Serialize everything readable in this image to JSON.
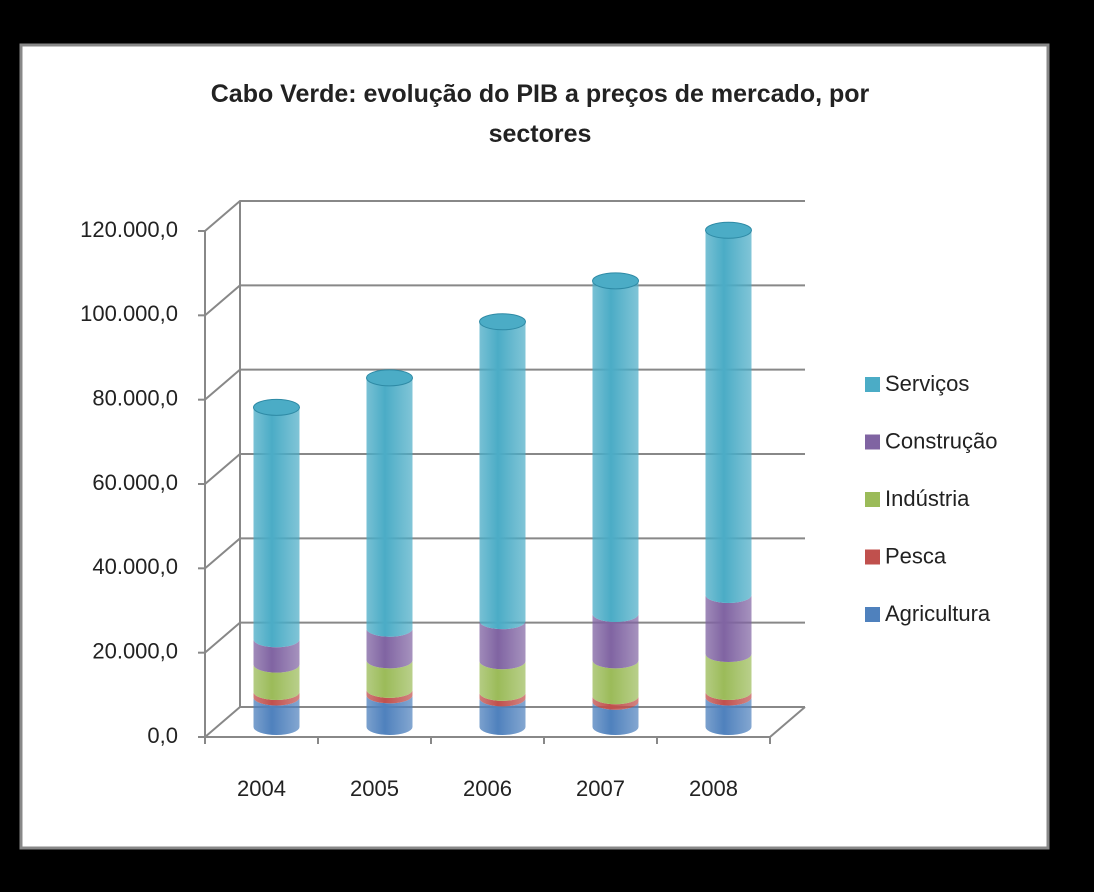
{
  "chart_data": {
    "type": "stacked-cylinder",
    "title": "Cabo Verde: evolução do PIB a preços de mercado, por sectores",
    "categories": [
      "2004",
      "2005",
      "2006",
      "2007",
      "2008"
    ],
    "series": [
      {
        "name": "Agricultura",
        "color": "#4f81bd",
        "values": [
          7000,
          7500,
          6800,
          6000,
          7000
        ]
      },
      {
        "name": "Pesca",
        "color": "#c0504d",
        "values": [
          1300,
          1300,
          1300,
          1300,
          1300
        ]
      },
      {
        "name": "Indústria",
        "color": "#9bbb59",
        "values": [
          6500,
          7000,
          7500,
          8500,
          9000
        ]
      },
      {
        "name": "Construção",
        "color": "#8064a2",
        "values": [
          6000,
          7500,
          9500,
          11000,
          14000
        ]
      },
      {
        "name": "Serviços",
        "color": "#4bacc6",
        "values": [
          55000,
          59500,
          71000,
          79000,
          86500
        ]
      }
    ],
    "ylim": [
      0,
      120000
    ],
    "yticks": [
      {
        "value": 0,
        "label": "0,0"
      },
      {
        "value": 20000,
        "label": "20.000,0"
      },
      {
        "value": 40000,
        "label": "40.000,0"
      },
      {
        "value": 60000,
        "label": "60.000,0"
      },
      {
        "value": 80000,
        "label": "80.000,0"
      },
      {
        "value": 100000,
        "label": "100.000,0"
      },
      {
        "value": 120000,
        "label": "120.000,0"
      }
    ],
    "grid": true,
    "legend": "right"
  }
}
